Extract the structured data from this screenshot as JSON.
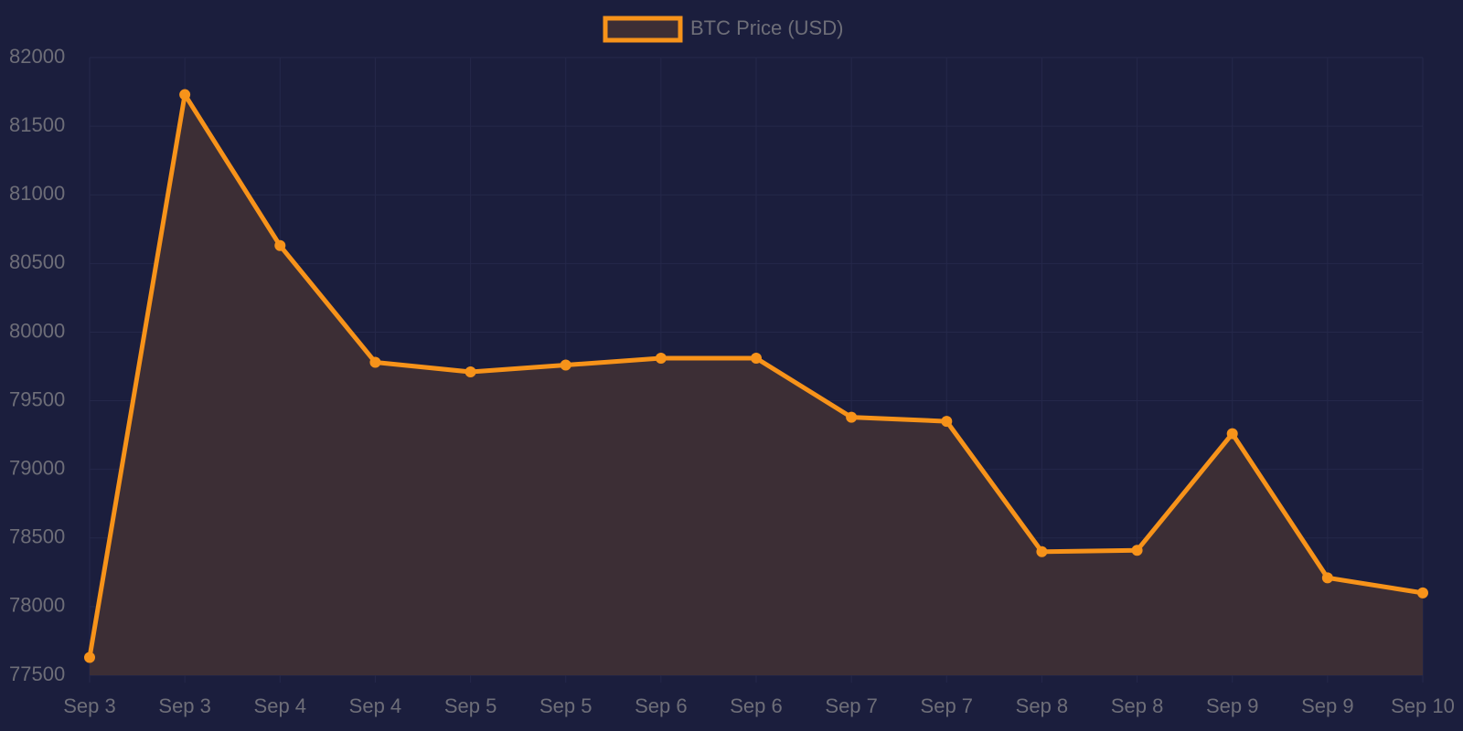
{
  "chart_data": {
    "type": "line",
    "categories": [
      "Sep 3",
      "Sep 3",
      "Sep 4",
      "Sep 4",
      "Sep 5",
      "Sep 5",
      "Sep 6",
      "Sep 6",
      "Sep 7",
      "Sep 7",
      "Sep 8",
      "Sep 8",
      "Sep 9",
      "Sep 9",
      "Sep 10"
    ],
    "series": [
      {
        "name": "BTC Price (USD)",
        "color": "#f7931a",
        "fill": "#3c2e35",
        "values": [
          77630,
          81730,
          80630,
          79780,
          79710,
          79760,
          79810,
          79810,
          79380,
          79350,
          78400,
          78410,
          79260,
          78210,
          78100
        ]
      }
    ],
    "ylim": [
      77500,
      82000
    ],
    "yticks": [
      77500,
      78000,
      78500,
      79000,
      79500,
      80000,
      80500,
      81000,
      81500,
      82000
    ],
    "grid": true,
    "legend": "top"
  }
}
